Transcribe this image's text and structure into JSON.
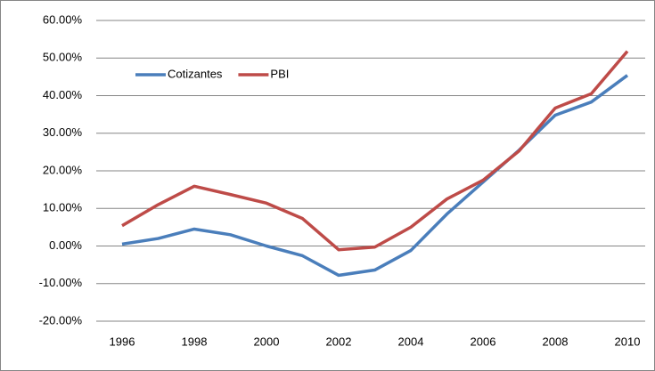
{
  "chart_data": {
    "type": "line",
    "x": [
      1996,
      1997,
      1998,
      1999,
      2000,
      2001,
      2002,
      2003,
      2004,
      2005,
      2006,
      2007,
      2008,
      2009,
      2010
    ],
    "series": [
      {
        "name": "Cotizantes",
        "color": "#4a7ebb",
        "values": [
          0.5,
          2,
          4.5,
          3,
          0,
          -2.6,
          -7.8,
          -6.4,
          -1.2,
          8.5,
          17,
          25.5,
          34.8,
          38.3,
          45.4
        ]
      },
      {
        "name": "PBI",
        "color": "#be4b48",
        "values": [
          5.4,
          11,
          15.9,
          13.7,
          11.4,
          7.3,
          -1,
          -0.3,
          5,
          12.5,
          17.5,
          25.3,
          36.7,
          40.5,
          51.8
        ]
      }
    ],
    "xlim": [
      1996,
      2010
    ],
    "xticks": [
      1996,
      1998,
      2000,
      2002,
      2004,
      2006,
      2008,
      2010
    ],
    "ylim": [
      -20,
      60
    ],
    "yticks": [
      {
        "value": -20,
        "label": "-20.00%"
      },
      {
        "value": -10,
        "label": "-10.00%"
      },
      {
        "value": 0,
        "label": "0.00%"
      },
      {
        "value": 10,
        "label": "10.00%"
      },
      {
        "value": 20,
        "label": "20.00%"
      },
      {
        "value": 30,
        "label": "30.00%"
      },
      {
        "value": 40,
        "label": "40.00%"
      },
      {
        "value": 50,
        "label": "50.00%"
      },
      {
        "value": 60,
        "label": "60.00%"
      }
    ],
    "grid": true,
    "legend": "upper-left"
  }
}
